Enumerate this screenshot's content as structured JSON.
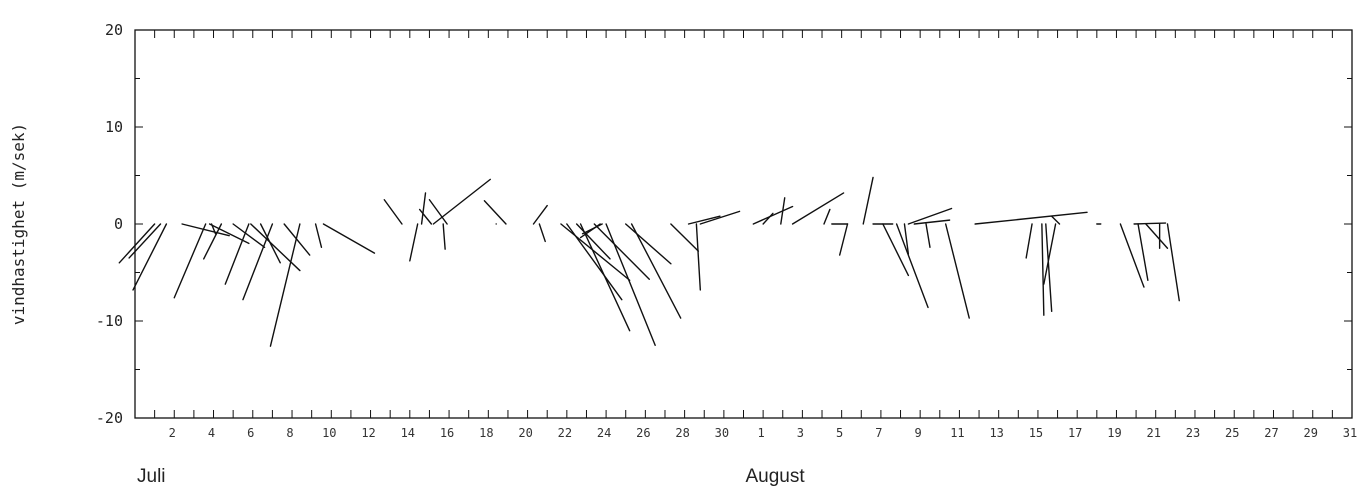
{
  "chart_data": {
    "type": "stick-plot",
    "ylabel": "vindhastighet (m/sek)",
    "ylim": [
      -20,
      20
    ],
    "y_ticks": [
      20,
      10,
      0,
      -10,
      -20
    ],
    "x_range": [
      0,
      62
    ],
    "x_tick_labels": [
      {
        "x": 2,
        "label": "2"
      },
      {
        "x": 4,
        "label": "4"
      },
      {
        "x": 6,
        "label": "6"
      },
      {
        "x": 8,
        "label": "8"
      },
      {
        "x": 10,
        "label": "10"
      },
      {
        "x": 12,
        "label": "12"
      },
      {
        "x": 14,
        "label": "14"
      },
      {
        "x": 16,
        "label": "16"
      },
      {
        "x": 18,
        "label": "18"
      },
      {
        "x": 20,
        "label": "20"
      },
      {
        "x": 22,
        "label": "22"
      },
      {
        "x": 24,
        "label": "24"
      },
      {
        "x": 26,
        "label": "26"
      },
      {
        "x": 28,
        "label": "28"
      },
      {
        "x": 30,
        "label": "30"
      },
      {
        "x": 32,
        "label": "1"
      },
      {
        "x": 34,
        "label": "3"
      },
      {
        "x": 36,
        "label": "5"
      },
      {
        "x": 38,
        "label": "7"
      },
      {
        "x": 40,
        "label": "9"
      },
      {
        "x": 42,
        "label": "11"
      },
      {
        "x": 44,
        "label": "13"
      },
      {
        "x": 46,
        "label": "15"
      },
      {
        "x": 48,
        "label": "17"
      },
      {
        "x": 50,
        "label": "19"
      },
      {
        "x": 52,
        "label": "21"
      },
      {
        "x": 54,
        "label": "23"
      },
      {
        "x": 56,
        "label": "25"
      },
      {
        "x": 58,
        "label": "27"
      },
      {
        "x": 60,
        "label": "29"
      },
      {
        "x": 62,
        "label": "31"
      }
    ],
    "months": [
      {
        "name": "Juli",
        "x": 0
      },
      {
        "name": "August",
        "x": 31
      }
    ],
    "sticks": [
      {
        "x": 1.0,
        "dx": -1.8,
        "dy": -4.0
      },
      {
        "x": 1.3,
        "dx": -1.6,
        "dy": -3.5
      },
      {
        "x": 1.6,
        "dx": -1.7,
        "dy": -6.8
      },
      {
        "x": 2.4,
        "dx": 2.4,
        "dy": -1.2
      },
      {
        "x": 3.6,
        "dx": -1.6,
        "dy": -7.6
      },
      {
        "x": 3.8,
        "dx": 2.0,
        "dy": -2.0
      },
      {
        "x": 3.9,
        "dx": 0.2,
        "dy": -1.0
      },
      {
        "x": 4.4,
        "dx": -0.9,
        "dy": -3.6
      },
      {
        "x": 5.0,
        "dx": 1.6,
        "dy": -2.4
      },
      {
        "x": 5.8,
        "dx": -1.2,
        "dy": -6.2
      },
      {
        "x": 5.9,
        "dx": 2.5,
        "dy": -4.8
      },
      {
        "x": 6.4,
        "dx": 1.0,
        "dy": -4.0
      },
      {
        "x": 7.0,
        "dx": -1.5,
        "dy": -7.8
      },
      {
        "x": 7.6,
        "dx": 1.3,
        "dy": -3.2
      },
      {
        "x": 8.4,
        "dx": -1.5,
        "dy": -12.6
      },
      {
        "x": 9.2,
        "dx": 0.3,
        "dy": -2.4
      },
      {
        "x": 9.6,
        "dx": 2.6,
        "dy": -3.0
      },
      {
        "x": 13.6,
        "dx": -0.9,
        "dy": 2.5
      },
      {
        "x": 14.4,
        "dx": -0.4,
        "dy": -3.8
      },
      {
        "x": 14.6,
        "dx": 0.2,
        "dy": 3.2
      },
      {
        "x": 15.1,
        "dx": -0.6,
        "dy": 1.5
      },
      {
        "x": 15.2,
        "dx": 2.9,
        "dy": 4.6
      },
      {
        "x": 15.7,
        "dx": 0.1,
        "dy": -2.6
      },
      {
        "x": 15.9,
        "dx": -0.9,
        "dy": 2.5
      },
      {
        "x": 18.4,
        "dx": 0.0,
        "dy": 0.0
      },
      {
        "x": 18.9,
        "dx": -1.1,
        "dy": 2.4
      },
      {
        "x": 20.3,
        "dx": 0.7,
        "dy": 1.9
      },
      {
        "x": 20.6,
        "dx": 0.3,
        "dy": -1.8
      },
      {
        "x": 21.7,
        "dx": 3.5,
        "dy": -5.8
      },
      {
        "x": 22.0,
        "dx": 2.8,
        "dy": -7.8
      },
      {
        "x": 22.5,
        "dx": 1.7,
        "dy": -3.6
      },
      {
        "x": 22.7,
        "dx": 2.5,
        "dy": -11.0
      },
      {
        "x": 23.4,
        "dx": 2.8,
        "dy": -5.7
      },
      {
        "x": 23.7,
        "dx": -1.0,
        "dy": -1.4
      },
      {
        "x": 23.8,
        "dx": -1.0,
        "dy": -1.0
      },
      {
        "x": 24.0,
        "dx": 2.5,
        "dy": -12.5
      },
      {
        "x": 25.0,
        "dx": 2.3,
        "dy": -4.1
      },
      {
        "x": 25.3,
        "dx": 2.5,
        "dy": -9.7
      },
      {
        "x": 27.3,
        "dx": 1.4,
        "dy": -2.8
      },
      {
        "x": 28.2,
        "dx": 1.6,
        "dy": 0.8
      },
      {
        "x": 28.6,
        "dx": 0.2,
        "dy": -6.8
      },
      {
        "x": 28.8,
        "dx": 2.0,
        "dy": 1.3
      },
      {
        "x": 31.5,
        "dx": 2.0,
        "dy": 1.8
      },
      {
        "x": 32.0,
        "dx": 0.5,
        "dy": 1.1
      },
      {
        "x": 32.9,
        "dx": 0.2,
        "dy": 2.7
      },
      {
        "x": 33.5,
        "dx": 2.6,
        "dy": 3.2
      },
      {
        "x": 35.1,
        "dx": 0.3,
        "dy": 1.5
      },
      {
        "x": 35.5,
        "dx": 0.8,
        "dy": 0.0
      },
      {
        "x": 36.3,
        "dx": -0.4,
        "dy": -3.2
      },
      {
        "x": 37.1,
        "dx": 0.5,
        "dy": 4.8
      },
      {
        "x": 37.6,
        "dx": 1.0,
        "dy": 0.0
      },
      {
        "x": 38.1,
        "dx": 1.3,
        "dy": -5.3
      },
      {
        "x": 38.8,
        "dx": 1.6,
        "dy": -8.6
      },
      {
        "x": 39.2,
        "dx": 0.2,
        "dy": -3.1
      },
      {
        "x": 39.4,
        "dx": 2.2,
        "dy": 1.6
      },
      {
        "x": 39.7,
        "dx": 1.8,
        "dy": 0.4
      },
      {
        "x": 40.3,
        "dx": 0.2,
        "dy": -2.4
      },
      {
        "x": 41.3,
        "dx": 1.2,
        "dy": -9.7
      },
      {
        "x": 42.8,
        "dx": 5.7,
        "dy": 1.2
      },
      {
        "x": 45.7,
        "dx": -0.3,
        "dy": -3.5
      },
      {
        "x": 46.2,
        "dx": 0.1,
        "dy": -9.4
      },
      {
        "x": 46.4,
        "dx": 0.3,
        "dy": -9.0
      },
      {
        "x": 46.9,
        "dx": -0.6,
        "dy": -6.2
      },
      {
        "x": 47.1,
        "dx": -0.4,
        "dy": 0.8
      },
      {
        "x": 49.0,
        "dx": 0.2,
        "dy": 0.0
      },
      {
        "x": 50.2,
        "dx": 1.2,
        "dy": -6.5
      },
      {
        "x": 50.9,
        "dx": 1.6,
        "dy": 0.1
      },
      {
        "x": 51.1,
        "dx": 0.5,
        "dy": -5.8
      },
      {
        "x": 51.5,
        "dx": 1.1,
        "dy": -2.5
      },
      {
        "x": 52.2,
        "dx": 0.0,
        "dy": -2.5
      },
      {
        "x": 52.6,
        "dx": 0.6,
        "dy": -7.9
      }
    ]
  }
}
